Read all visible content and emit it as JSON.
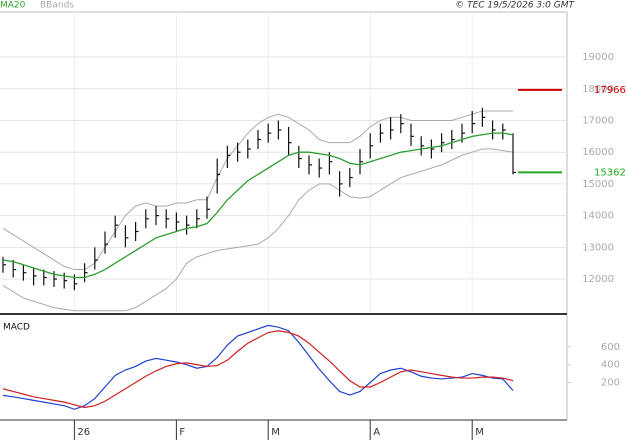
{
  "chart_data": [
    {
      "type": "ohlc",
      "credit": "© TEC 19/5/2026 3:0 GMT",
      "ylim": [
        10930,
        20420
      ],
      "yticks": [
        12000,
        13000,
        14000,
        15000,
        16000,
        17000,
        18000,
        19000
      ],
      "grid": true,
      "bar_color": "#111111",
      "ohlc": {
        "high": [
          12700,
          12600,
          12450,
          12350,
          12300,
          12250,
          12200,
          12150,
          12500,
          13000,
          13500,
          14000,
          13700,
          13800,
          14200,
          14300,
          14200,
          14100,
          14000,
          14200,
          14600,
          15800,
          16200,
          16300,
          16400,
          16700,
          16900,
          17000,
          16800,
          16200,
          15900,
          15800,
          16000,
          15400,
          15500,
          16100,
          16600,
          16900,
          17100,
          17200,
          16900,
          16500,
          16400,
          16600,
          16700,
          16900,
          17300,
          17400,
          17000,
          16900,
          16600
        ],
        "low": [
          12200,
          12050,
          11950,
          11800,
          11800,
          11750,
          11700,
          11650,
          11900,
          12300,
          12800,
          13300,
          13000,
          13200,
          13600,
          13700,
          13600,
          13500,
          13400,
          13600,
          13900,
          14700,
          15500,
          15700,
          15800,
          16100,
          16300,
          16400,
          15900,
          15500,
          15300,
          15200,
          15300,
          14600,
          14900,
          15300,
          15800,
          16300,
          16400,
          16600,
          16200,
          15900,
          15800,
          16000,
          16100,
          16300,
          16600,
          16800,
          16400,
          16400,
          15300
        ],
        "close": [
          12450,
          12300,
          12200,
          12100,
          12050,
          12000,
          11950,
          11850,
          12200,
          12600,
          13100,
          13700,
          13300,
          13500,
          13900,
          14000,
          13900,
          13800,
          13700,
          13900,
          14200,
          15300,
          15900,
          16000,
          16100,
          16400,
          16600,
          16700,
          16300,
          15800,
          15600,
          15500,
          15700,
          15000,
          15200,
          15700,
          16200,
          16600,
          16700,
          16900,
          16500,
          16200,
          16100,
          16300,
          16400,
          16600,
          16900,
          17100,
          16700,
          16700,
          15362
        ]
      },
      "series": [
        {
          "name": "MA20",
          "color": "#2e9e2e",
          "values": [
            12600,
            12550,
            12450,
            12350,
            12250,
            12150,
            12100,
            12050,
            12050,
            12150,
            12300,
            12500,
            12700,
            12900,
            13100,
            13300,
            13400,
            13500,
            13600,
            13650,
            13750,
            14100,
            14500,
            14800,
            15100,
            15300,
            15500,
            15700,
            15900,
            16000,
            16000,
            15950,
            15900,
            15800,
            15650,
            15600,
            15700,
            15800,
            15900,
            16000,
            16050,
            16100,
            16150,
            16200,
            16300,
            16400,
            16500,
            16550,
            16600,
            16600,
            16550
          ]
        },
        {
          "name": "BBands",
          "color": "#aaaaaa",
          "upper": [
            13600,
            13400,
            13200,
            13000,
            12800,
            12600,
            12400,
            12300,
            12300,
            12500,
            13000,
            13500,
            14000,
            14300,
            14400,
            14300,
            14300,
            14400,
            14400,
            14500,
            14500,
            15200,
            15800,
            16200,
            16600,
            16900,
            17100,
            17200,
            17100,
            16900,
            16700,
            16400,
            16300,
            16300,
            16300,
            16500,
            16800,
            17000,
            17100,
            17100,
            17000,
            17000,
            17000,
            17000,
            17000,
            17100,
            17200,
            17300,
            17300,
            17300,
            17300
          ],
          "lower": [
            11800,
            11600,
            11400,
            11300,
            11200,
            11100,
            11050,
            11000,
            11000,
            11000,
            11000,
            11000,
            11000,
            11100,
            11300,
            11500,
            11700,
            12000,
            12500,
            12700,
            12800,
            12900,
            12950,
            13000,
            13050,
            13100,
            13300,
            13600,
            14000,
            14500,
            14800,
            15000,
            15000,
            14800,
            14600,
            14550,
            14600,
            14800,
            15000,
            15200,
            15300,
            15400,
            15500,
            15600,
            15750,
            15900,
            16000,
            16100,
            16100,
            16050,
            16000
          ]
        }
      ],
      "levels": [
        {
          "value": 17966,
          "color": "#cc0000"
        },
        {
          "value": 15362,
          "color": "#22aa22"
        }
      ]
    },
    {
      "type": "line",
      "title": "MACD",
      "categories": [
        null,
        null,
        null,
        null,
        null,
        null,
        null,
        "26",
        null,
        null,
        null,
        null,
        null,
        null,
        null,
        null,
        null,
        "F",
        null,
        null,
        null,
        null,
        null,
        null,
        null,
        null,
        "M",
        null,
        null,
        null,
        null,
        null,
        null,
        null,
        null,
        null,
        "A",
        null,
        null,
        null,
        null,
        null,
        null,
        null,
        null,
        null,
        "M",
        null,
        null,
        null,
        null
      ],
      "ylim": [
        -220,
        945
      ],
      "yticks": [
        200,
        400,
        600
      ],
      "series": [
        {
          "color": "#2040d0",
          "values": [
            56,
            40,
            20,
            0,
            -20,
            -40,
            -60,
            -100,
            -60,
            20,
            150,
            280,
            340,
            380,
            440,
            470,
            450,
            430,
            400,
            360,
            380,
            480,
            620,
            720,
            760,
            800,
            840,
            820,
            780,
            650,
            500,
            350,
            220,
            100,
            60,
            100,
            200,
            300,
            340,
            360,
            320,
            270,
            250,
            240,
            250,
            260,
            300,
            280,
            250,
            240,
            110
          ]
        },
        {
          "color": "#d02020",
          "values": [
            130,
            100,
            70,
            40,
            20,
            0,
            -20,
            -50,
            -80,
            -60,
            -10,
            60,
            130,
            200,
            270,
            330,
            380,
            410,
            420,
            400,
            380,
            390,
            450,
            550,
            640,
            700,
            760,
            780,
            760,
            720,
            640,
            540,
            440,
            330,
            220,
            150,
            150,
            200,
            260,
            320,
            340,
            320,
            300,
            280,
            260,
            250,
            250,
            260,
            260,
            250,
            220
          ]
        }
      ]
    }
  ]
}
